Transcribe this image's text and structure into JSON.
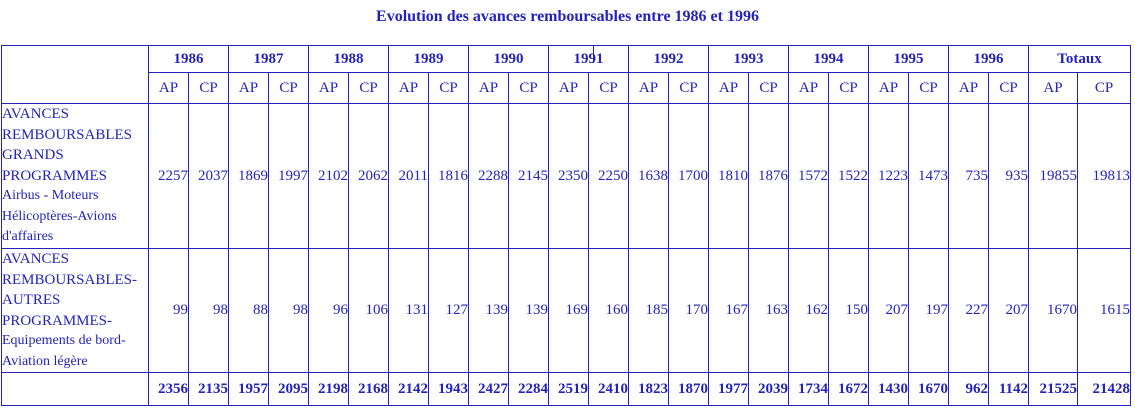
{
  "title": "Evolution des avances remboursables entre 1986 et 1996",
  "colors": {
    "text": "#2323bb",
    "border": "#2323bb",
    "background": "#ffffff"
  },
  "chart_data": {
    "type": "table",
    "title": "Evolution des avances remboursables entre 1986 et 1996",
    "column_groups": [
      "1986",
      "1987",
      "1988",
      "1989",
      "1990",
      "1991",
      "1992",
      "1993",
      "1994",
      "1995",
      "1996",
      "Totaux"
    ],
    "sub_columns": [
      "AP",
      "CP"
    ],
    "rows": [
      {
        "label_caps": "AVANCES REMBOURSABLES GRANDS PROGRAMMES",
        "label_sub": "Airbus - Moteurs Hélicoptères-Avions d'affaires",
        "values": [
          2257,
          2037,
          1869,
          1997,
          2102,
          2062,
          2011,
          1816,
          2288,
          2145,
          2350,
          2250,
          1638,
          1700,
          1810,
          1876,
          1572,
          1522,
          1223,
          1473,
          735,
          935,
          19855,
          19813
        ]
      },
      {
        "label_caps": "AVANCES REMBOURSABLES-AUTRES PROGRAMMES-",
        "label_sub": "Equipements de bord-Aviation légère",
        "values": [
          99,
          98,
          88,
          98,
          96,
          106,
          131,
          127,
          139,
          139,
          169,
          160,
          185,
          170,
          167,
          163,
          162,
          150,
          207,
          197,
          227,
          207,
          1670,
          1615
        ]
      }
    ],
    "totals_row": {
      "label": "",
      "values": [
        2356,
        2135,
        1957,
        2095,
        2198,
        2168,
        2142,
        1943,
        2427,
        2284,
        2519,
        2410,
        1823,
        1870,
        1977,
        2039,
        1734,
        1672,
        1430,
        1670,
        962,
        1142,
        21525,
        21428
      ]
    },
    "layout": {
      "label_col_width": 147,
      "year_col_width": 40,
      "totaux_col_widths": [
        49,
        53
      ]
    }
  }
}
